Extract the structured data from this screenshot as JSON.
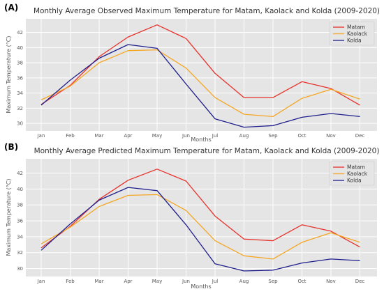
{
  "chart_data": [
    {
      "type": "line",
      "panel_label": "(A)",
      "title": "Monthly Average Observed Maximum Temperature for Matam, Kaolack and Kolda (2009-2020)",
      "xlabel": "Months",
      "ylabel": "Maximum Temperature (°C)",
      "categories": [
        "Jan",
        "Feb",
        "Mar",
        "Apr",
        "May",
        "Jun",
        "Jul",
        "Aug",
        "Sep",
        "Oct",
        "Nov",
        "Dec"
      ],
      "yticks": [
        30,
        32,
        34,
        36,
        38,
        40,
        42
      ],
      "ylim": [
        29,
        43.8
      ],
      "grid": true,
      "legend_position": "top-right",
      "series": [
        {
          "name": "Matam",
          "color": "#e8312a",
          "values": [
            32.5,
            35.0,
            38.8,
            41.4,
            43.0,
            41.2,
            36.6,
            33.4,
            33.4,
            35.5,
            34.6,
            32.4
          ]
        },
        {
          "name": "Kaolack",
          "color": "#f5a623",
          "values": [
            33.1,
            34.9,
            38.0,
            39.6,
            39.7,
            37.3,
            33.4,
            31.2,
            30.9,
            33.3,
            34.5,
            33.2
          ]
        },
        {
          "name": "Kolda",
          "color": "#1e1e8c",
          "values": [
            32.4,
            35.7,
            38.6,
            40.4,
            39.9,
            35.2,
            30.6,
            29.5,
            29.7,
            30.8,
            31.3,
            30.9
          ]
        }
      ]
    },
    {
      "type": "line",
      "panel_label": "(B)",
      "title": "Monthly Average Predicted Maximum Temperature for Matam, Kaolack and Kolda (2009-2020)",
      "xlabel": "Months",
      "ylabel": "Maximum Temperature (°C)",
      "categories": [
        "Jan",
        "Feb",
        "Mar",
        "Apr",
        "May",
        "Jun",
        "Jul",
        "Aug",
        "Sep",
        "Oct",
        "Nov",
        "Dec"
      ],
      "yticks": [
        30,
        32,
        34,
        36,
        38,
        40,
        42
      ],
      "ylim": [
        29,
        43.8
      ],
      "grid": true,
      "legend_position": "top-right",
      "series": [
        {
          "name": "Matam",
          "color": "#e8312a",
          "values": [
            32.6,
            35.3,
            38.7,
            41.1,
            42.5,
            41.0,
            36.6,
            33.7,
            33.5,
            35.5,
            34.7,
            32.7
          ]
        },
        {
          "name": "Kaolack",
          "color": "#f5a623",
          "values": [
            33.1,
            35.2,
            37.8,
            39.2,
            39.3,
            37.3,
            33.5,
            31.6,
            31.2,
            33.3,
            34.5,
            33.3
          ]
        },
        {
          "name": "Kolda",
          "color": "#1e1e8c",
          "values": [
            32.3,
            35.6,
            38.6,
            40.2,
            39.8,
            35.5,
            30.6,
            29.7,
            29.8,
            30.7,
            31.2,
            31.0
          ]
        }
      ]
    }
  ]
}
